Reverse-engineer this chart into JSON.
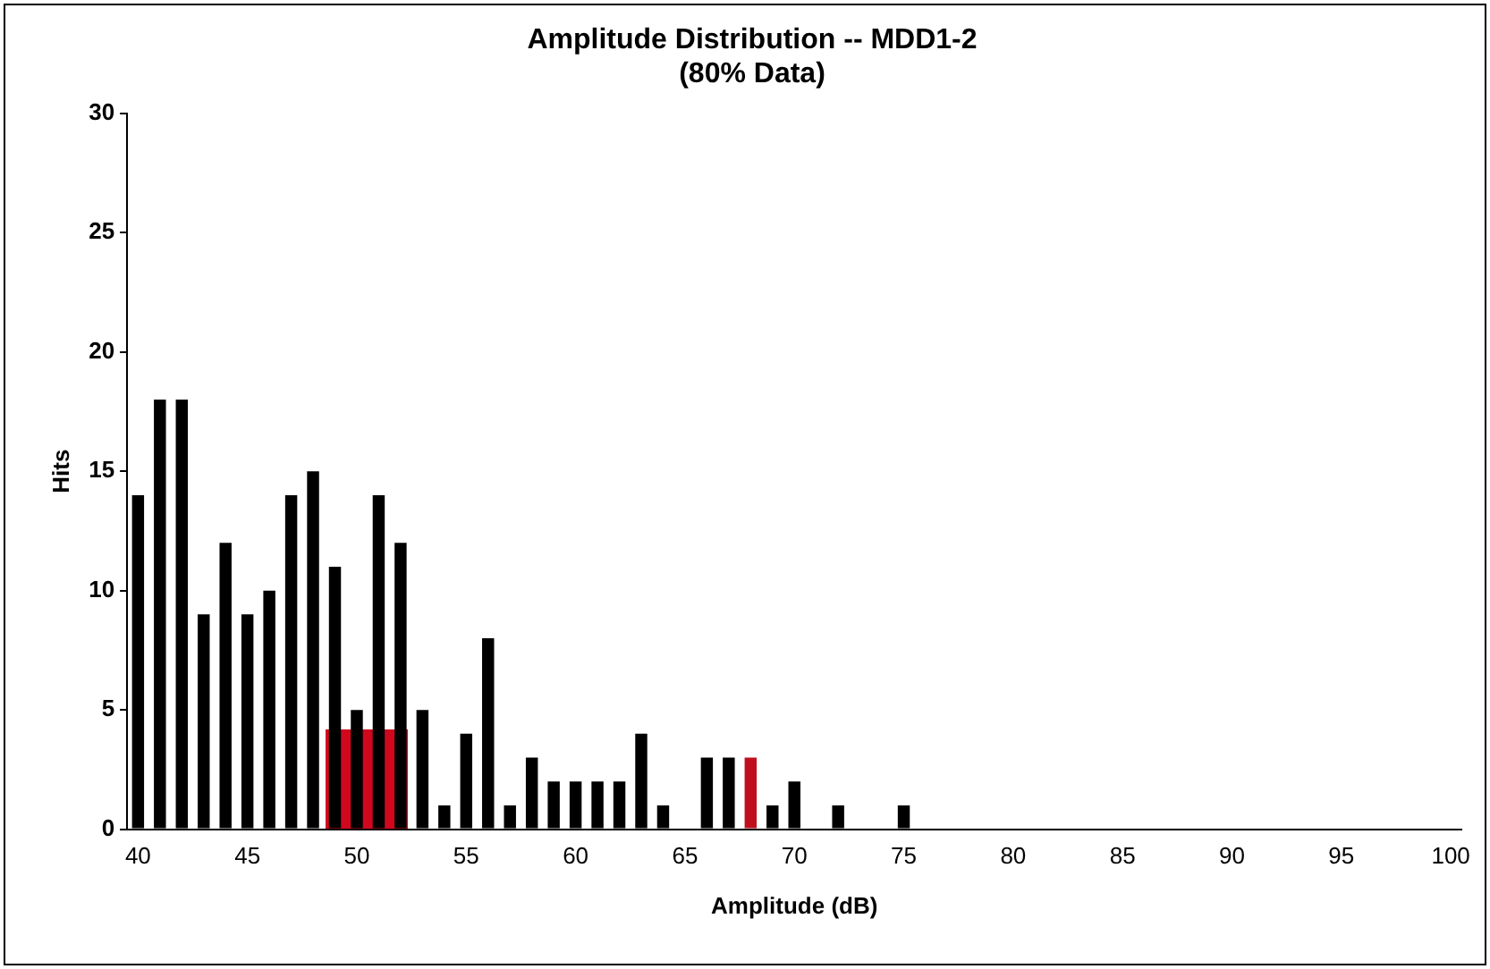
{
  "chart_data": {
    "type": "bar",
    "title": "Amplitude Distribution -- MDD1-2",
    "subtitle": "(80% Data)",
    "xlabel": "Amplitude (dB)",
    "ylabel": "Hits",
    "categories": [
      "40",
      null,
      null,
      null,
      null,
      "45",
      null,
      null,
      null,
      null,
      "50",
      null,
      null,
      null,
      null,
      "55",
      null,
      null,
      null,
      null,
      "60",
      null,
      null,
      null,
      null,
      "65",
      null,
      null,
      null,
      null,
      "70",
      null,
      null,
      null,
      null,
      "75",
      null,
      null,
      null,
      null,
      "80",
      null,
      null,
      null,
      null,
      "85",
      null,
      null,
      null,
      null,
      "90",
      null,
      null,
      null,
      null,
      "95",
      null,
      null,
      null,
      null,
      "100"
    ],
    "series": [
      {
        "colors": [
          "#000000",
          "#000000",
          "#000000",
          "#000000",
          "#000000",
          "#000000",
          "#000000",
          "#000000",
          "#000000",
          "#000000",
          "#000000",
          "#000000",
          "#000000",
          "#000000",
          "#000000",
          "#000000",
          "#000000",
          "#000000",
          "#000000",
          "#000000",
          "#000000",
          "#000000",
          "#000000",
          "#000000",
          "#000000",
          "#000000",
          "#000000",
          "#000000",
          "#c0101e",
          "#000000",
          "#000000",
          "#000000",
          "#000000",
          "#000000",
          "#000000",
          "#000000",
          "#000000",
          "#000000",
          "#000000",
          "#000000",
          "#000000",
          "#000000",
          "#000000",
          "#000000",
          "#000000",
          "#000000",
          "#000000",
          "#000000",
          "#000000",
          "#000000",
          "#000000",
          "#000000",
          "#000000",
          "#000000",
          "#000000",
          "#000000",
          "#000000",
          "#000000",
          "#000000",
          "#000000",
          "#000000"
        ],
        "values": [
          14,
          18,
          18,
          9,
          12,
          9,
          10,
          14,
          15,
          11,
          5,
          14,
          12,
          5,
          1,
          4,
          8,
          1,
          3,
          2,
          2,
          2,
          2,
          4,
          1,
          0,
          3,
          3,
          3,
          1,
          2,
          0,
          1,
          0,
          0,
          1,
          0,
          0,
          0,
          0,
          0,
          0,
          0,
          0,
          0,
          0,
          0,
          0,
          0,
          0,
          0,
          0,
          0,
          0,
          0,
          0,
          0,
          0,
          0,
          0,
          0
        ]
      }
    ],
    "ylim": [
      0,
      30
    ],
    "yticks": [
      0,
      5,
      10,
      15,
      20,
      25,
      30
    ],
    "grid": false,
    "legend": false
  }
}
